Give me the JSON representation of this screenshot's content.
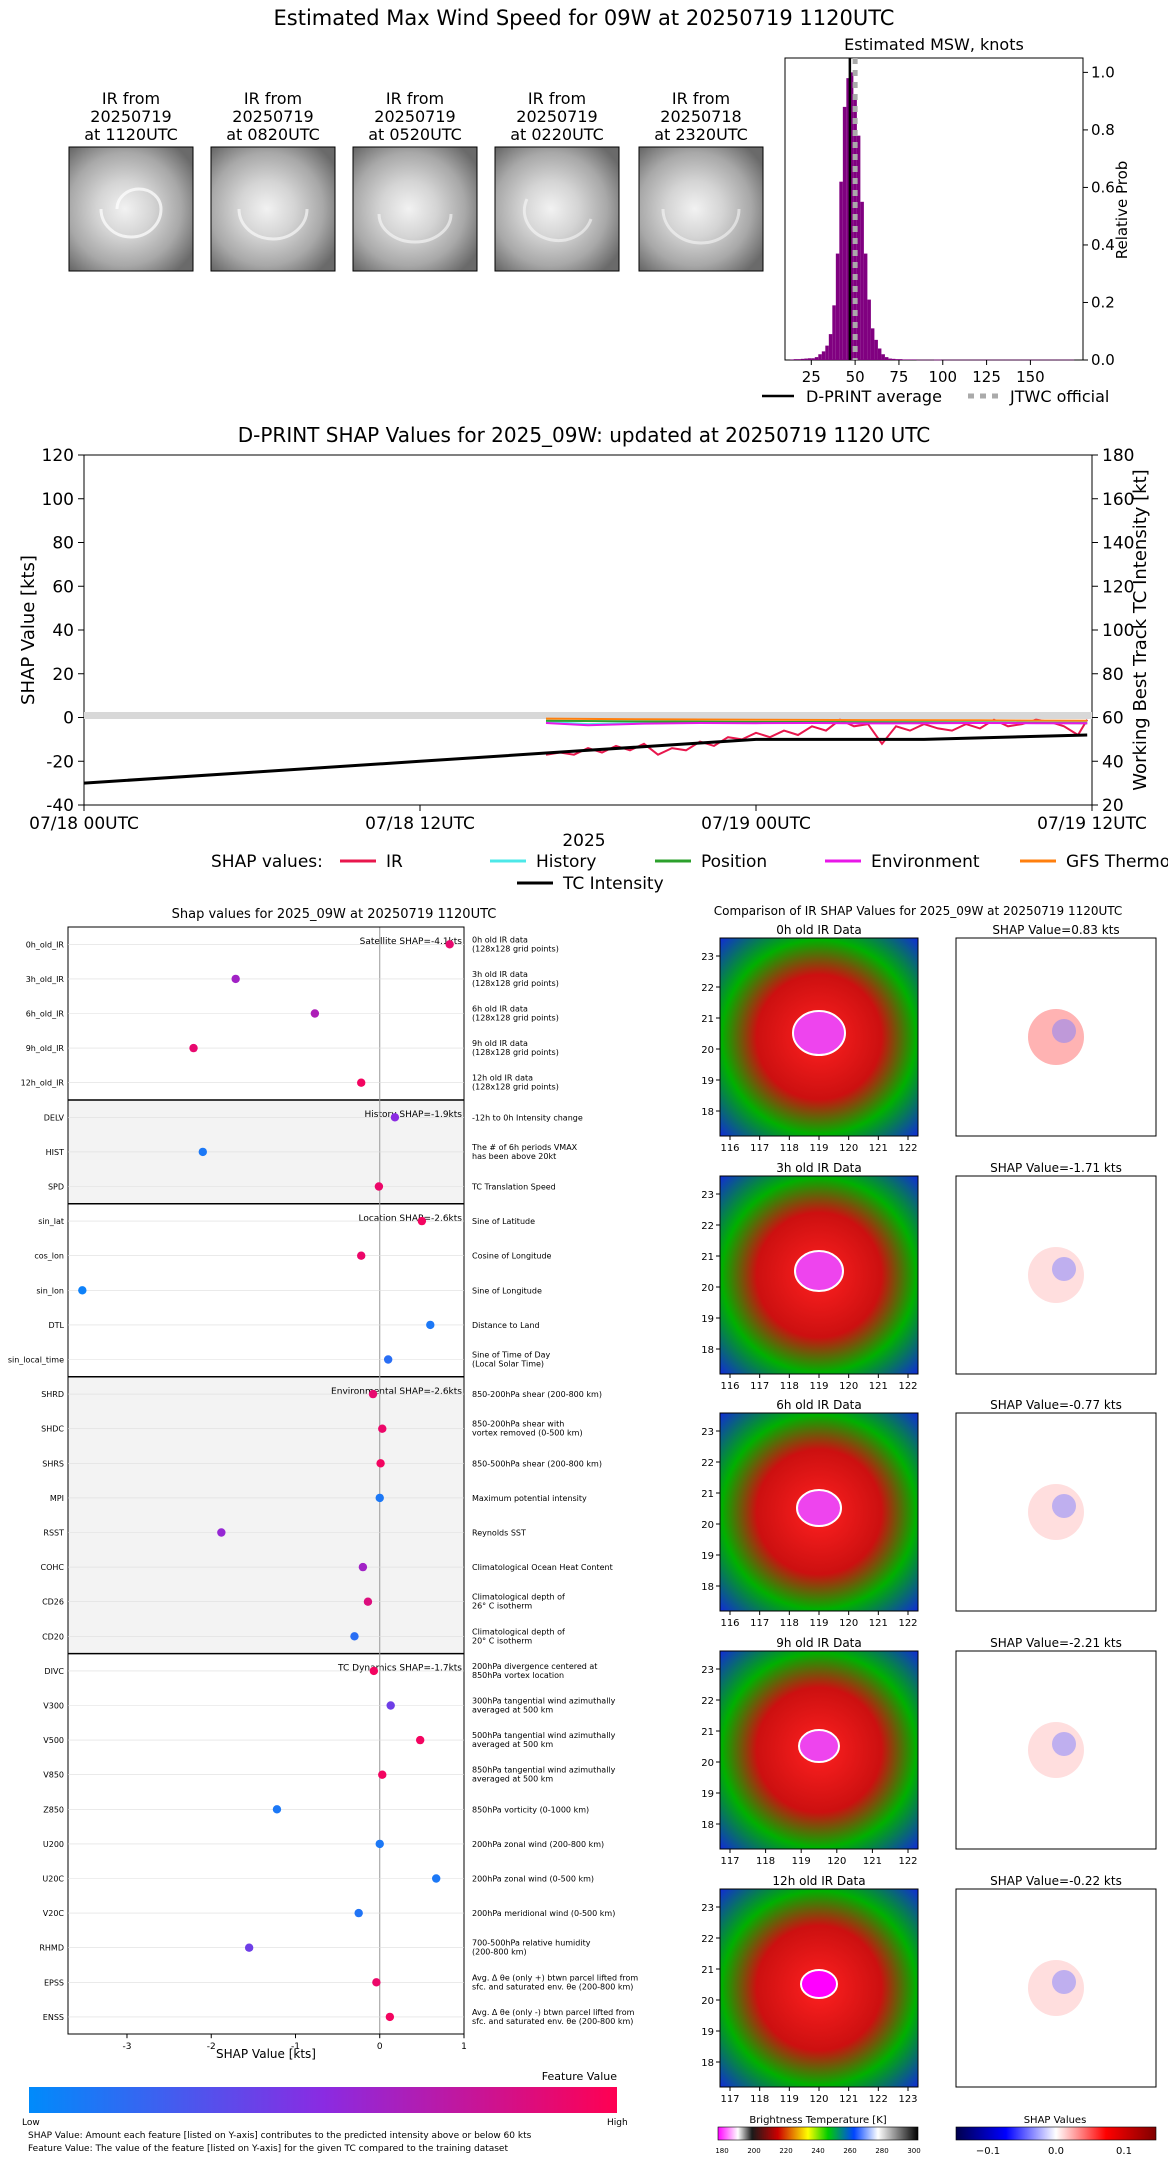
{
  "top": {
    "title": "Estimated Max Wind Speed for 09W at 20250719 1120UTC",
    "ir_panels": [
      {
        "label": "IR from\n20250719\nat 1120UTC"
      },
      {
        "label": "IR from\n20250719\nat 0820UTC"
      },
      {
        "label": "IR from\n20250719\nat 0520UTC"
      },
      {
        "label": "IR from\n20250719\nat 0220UTC"
      },
      {
        "label": "IR from\n20250718\nat 2320UTC"
      }
    ]
  },
  "msw": {
    "title": "Estimated MSW, knots",
    "ylabel": "Relative Prob",
    "legend": {
      "avg": "D-PRINT average",
      "official": "JTWC official"
    },
    "colors": {
      "bar": "#800080",
      "avg": "#000000",
      "official": "#aaaaaa"
    }
  },
  "shap_ts": {
    "title": "D-PRINT SHAP Values for 2025_09W: updated at 20250719 1120 UTC",
    "ylabel_left": "SHAP Value [kts]",
    "ylabel_right": "Working Best Track TC Intensity [kt]",
    "xlabel": "2025",
    "legend_title": "SHAP values:",
    "legend": [
      {
        "name": "IR",
        "color": "#e8174d"
      },
      {
        "name": "History",
        "color": "#4de8e8"
      },
      {
        "name": "Position",
        "color": "#2ca02c"
      },
      {
        "name": "Environment",
        "color": "#e817e8"
      },
      {
        "name": "GFS Thermo",
        "color": "#ff7f0e"
      },
      {
        "name": "TC Intensity",
        "color": "#000000"
      }
    ]
  },
  "shapdot": {
    "title": "Shap values for 2025_09W at 20250719 1120UTC",
    "xlabel": "SHAP Value [kts]",
    "colorbar": {
      "title": "Feature Value",
      "low": "Low",
      "high": "High"
    },
    "groups": [
      {
        "label": "Satellite SHAP=-4.1kts"
      },
      {
        "label": "History SHAP=-1.9kts"
      },
      {
        "label": "Location SHAP=-2.6kts"
      },
      {
        "label": "Environmental SHAP=-2.6kts"
      },
      {
        "label": "TC Dynamics SHAP=-1.7kts"
      }
    ],
    "footnote1": "SHAP Value: Amount each feature [listed on Y-axis] contributes to the predicted intensity above or below 60 kts",
    "footnote2": "Feature Value: The value of the feature [listed on Y-axis] for the given TC compared to the training dataset"
  },
  "irshap": {
    "title": "Comparison of IR SHAP Values for 2025_09W at 20250719 1120UTC",
    "rows": [
      {
        "ir_title": "0h old IR Data",
        "shap_title": "SHAP Value=0.83 kts"
      },
      {
        "ir_title": "3h old IR Data",
        "shap_title": "SHAP Value=-1.71 kts"
      },
      {
        "ir_title": "6h old IR Data",
        "shap_title": "SHAP Value=-0.77 kts"
      },
      {
        "ir_title": "9h old IR Data",
        "shap_title": "SHAP Value=-2.21 kts"
      },
      {
        "ir_title": "12h old IR Data",
        "shap_title": "SHAP Value=-0.22 kts"
      }
    ],
    "bt_label": "Brightness Temperature [K]",
    "bt_ticks": [
      "180",
      "200",
      "220",
      "240",
      "260",
      "280",
      "300"
    ],
    "sv_label": "SHAP Values",
    "sv_ticks": [
      "−0.1",
      "0.0",
      "0.1"
    ]
  },
  "chart_data": [
    {
      "type": "bar",
      "title": "Estimated MSW, knots",
      "ylabel": "Relative Prob",
      "xlim": [
        10,
        180
      ],
      "ylim": [
        0,
        1.05
      ],
      "xticks": [
        25,
        50,
        75,
        100,
        125,
        150
      ],
      "yticks": [
        0.0,
        0.2,
        0.4,
        0.6,
        0.8,
        1.0
      ],
      "x": [
        14,
        16,
        18,
        20,
        22,
        24,
        26,
        28,
        30,
        32,
        34,
        36,
        38,
        40,
        42,
        44,
        46,
        48,
        50,
        52,
        54,
        56,
        58,
        60,
        62,
        64,
        66,
        68,
        70,
        72,
        74,
        76,
        78,
        80,
        82,
        84,
        86,
        88,
        90,
        92,
        94,
        96,
        98,
        100,
        110,
        120,
        130,
        140,
        150,
        160,
        170
      ],
      "values": [
        0.002,
        0.003,
        0.003,
        0.004,
        0.005,
        0.006,
        0.006,
        0.01,
        0.02,
        0.03,
        0.05,
        0.09,
        0.19,
        0.37,
        0.62,
        0.88,
        0.98,
        1.0,
        0.92,
        0.78,
        0.55,
        0.37,
        0.21,
        0.11,
        0.07,
        0.04,
        0.02,
        0.01,
        0.005,
        0.004,
        0.003,
        0.003,
        0.002,
        0.002,
        0.002,
        0.002,
        0.001,
        0.001,
        0.001,
        0.001,
        0.001,
        0.001,
        0.001,
        0.001,
        0.001,
        0.001,
        0.001,
        0.001,
        0.001,
        0.001,
        0.001
      ],
      "dprint_average": 47,
      "jtwc_official": 50
    },
    {
      "type": "line",
      "title": "D-PRINT SHAP Values for 2025_09W: updated at 20250719 1120 UTC",
      "xlabel": "2025",
      "ylabel": "SHAP Value [kts]",
      "ylabel_right": "Working Best Track TC Intensity [kt]",
      "ylim": [
        -40,
        120
      ],
      "ylim_right": [
        20,
        180
      ],
      "yticks": [
        -40,
        -20,
        0,
        20,
        40,
        60,
        80,
        100,
        120
      ],
      "yticks_right": [
        20,
        40,
        60,
        80,
        100,
        120,
        140,
        160,
        180
      ],
      "xlim_hours": [
        0,
        36
      ],
      "xticks": [
        {
          "h": 0,
          "label": "07/18 00UTC"
        },
        {
          "h": 12,
          "label": "07/18 12UTC"
        },
        {
          "h": 24,
          "label": "07/19 00UTC"
        },
        {
          "h": 36,
          "label": "07/19 12UTC"
        }
      ],
      "series": [
        {
          "name": "IR",
          "hours": [
            16.5,
            17,
            17.5,
            18,
            18.5,
            19,
            19.5,
            20,
            20.5,
            21,
            21.5,
            22,
            22.5,
            23,
            23.5,
            24,
            24.5,
            25,
            25.5,
            26,
            26.5,
            27,
            27.5,
            28,
            28.5,
            29,
            29.5,
            30,
            30.5,
            31,
            31.5,
            32,
            32.5,
            33,
            33.5,
            34,
            34.5,
            35,
            35.5,
            35.83
          ],
          "values": [
            -17,
            -16,
            -17,
            -14,
            -16,
            -13,
            -15,
            -12,
            -17,
            -14,
            -15,
            -11,
            -13,
            -9,
            -10,
            -7,
            -9,
            -6,
            -8,
            -4,
            -6,
            -1,
            -4,
            -3,
            -12,
            -4,
            -6,
            -3,
            -5,
            -6,
            -3,
            -5,
            -1,
            -4,
            -3,
            -1,
            -2,
            -4,
            -8,
            -1
          ]
        },
        {
          "name": "History",
          "hours": [
            16.5,
            18,
            20,
            22,
            24,
            26,
            28,
            30,
            32,
            34,
            35.83
          ],
          "values": [
            -2,
            -3,
            -2.5,
            -2.5,
            -2.3,
            -2.2,
            -2.1,
            -2,
            -2,
            -1.9,
            -1.9
          ]
        },
        {
          "name": "Position",
          "hours": [
            16.5,
            20,
            24,
            28,
            32,
            35.83
          ],
          "values": [
            -1.5,
            -1.8,
            -2,
            -2.2,
            -2.4,
            -2.6
          ]
        },
        {
          "name": "Environment",
          "hours": [
            16.5,
            18,
            20,
            22,
            24,
            26,
            28,
            30,
            32,
            34,
            35.83
          ],
          "values": [
            -2.5,
            -3.5,
            -2.8,
            -2.5,
            -2.6,
            -2.5,
            -2.7,
            -2.6,
            -2.5,
            -2.6,
            -2.6
          ]
        },
        {
          "name": "GFS Thermo",
          "hours": [
            16.5,
            20,
            24,
            28,
            32,
            35.83
          ],
          "values": [
            -0.5,
            -0.8,
            -1,
            -1.2,
            -1.3,
            -1.5
          ]
        },
        {
          "name": "TC Intensity",
          "axis": "right",
          "hours": [
            0,
            6,
            12,
            18,
            24,
            30,
            35.83
          ],
          "values": [
            30,
            35,
            40,
            45,
            50,
            50,
            52
          ]
        }
      ]
    },
    {
      "type": "scatter",
      "title": "Shap values for 2025_09W at 20250719 1120UTC",
      "xlabel": "SHAP Value [kts]",
      "xlim": [
        -3.7,
        1.0
      ],
      "xticks": [
        -3,
        -2,
        -1,
        0,
        1
      ],
      "features": [
        {
          "key": "0h_old_IR",
          "desc": "0h old IR data\n(128x128 grid points)",
          "shap": 0.83,
          "fv": 0.9
        },
        {
          "key": "3h_old_IR",
          "desc": "3h old IR data\n(128x128 grid points)",
          "shap": -1.71,
          "fv": 0.6
        },
        {
          "key": "6h_old_IR",
          "desc": "6h old IR data\n(128x128 grid points)",
          "shap": -0.77,
          "fv": 0.65
        },
        {
          "key": "9h_old_IR",
          "desc": "9h old IR data\n(128x128 grid points)",
          "shap": -2.21,
          "fv": 0.9
        },
        {
          "key": "12h_old_IR",
          "desc": "12h old IR data\n(128x128 grid points)",
          "shap": -0.22,
          "fv": 0.95
        },
        {
          "key": "DELV",
          "desc": "-12h to 0h Intensity change",
          "shap": 0.18,
          "fv": 0.5
        },
        {
          "key": "HIST",
          "desc": "The # of 6h periods VMAX\nhas been above 20kt",
          "shap": -2.1,
          "fv": 0.1
        },
        {
          "key": "SPD",
          "desc": "TC Translation Speed",
          "shap": -0.01,
          "fv": 0.92
        },
        {
          "key": "sin_lat",
          "desc": "Sine of Latitude",
          "shap": 0.5,
          "fv": 0.95
        },
        {
          "key": "cos_lon",
          "desc": "Cosine of Longitude",
          "shap": -0.22,
          "fv": 0.92
        },
        {
          "key": "sin_lon",
          "desc": "Sine of Longitude",
          "shap": -3.53,
          "fv": 0.05
        },
        {
          "key": "DTL",
          "desc": "Distance to Land",
          "shap": 0.6,
          "fv": 0.1
        },
        {
          "key": "sin_local_time",
          "desc": "Sine of Time of Day\n(Local Solar Time)",
          "shap": 0.1,
          "fv": 0.15
        },
        {
          "key": "SHRD",
          "desc": "850-200hPa shear (200-800 km)",
          "shap": -0.08,
          "fv": 0.9
        },
        {
          "key": "SHDC",
          "desc": "850-200hPa shear with\nvortex removed (0-500 km)",
          "shap": 0.03,
          "fv": 0.92
        },
        {
          "key": "SHRS",
          "desc": "850-500hPa shear (200-800 km)",
          "shap": 0.01,
          "fv": 0.95
        },
        {
          "key": "MPI",
          "desc": "Maximum potential intensity",
          "shap": 0.0,
          "fv": 0.1
        },
        {
          "key": "RSST",
          "desc": "Reynolds SST",
          "shap": -1.88,
          "fv": 0.55
        },
        {
          "key": "COHC",
          "desc": "Climatological Ocean Heat Content",
          "shap": -0.2,
          "fv": 0.6
        },
        {
          "key": "CD26",
          "desc": "Climatological depth of\n26° C isotherm",
          "shap": -0.14,
          "fv": 0.85
        },
        {
          "key": "CD20",
          "desc": "Climatological depth of\n20° C isotherm",
          "shap": -0.3,
          "fv": 0.15
        },
        {
          "key": "DIVC",
          "desc": "200hPa divergence centered at\n850hPa vortex location",
          "shap": -0.07,
          "fv": 0.95
        },
        {
          "key": "V300",
          "desc": "300hPa tangential wind azimuthally\naveraged at 500 km",
          "shap": 0.13,
          "fv": 0.4
        },
        {
          "key": "V500",
          "desc": "500hPa tangential wind azimuthally\naveraged at 500 km",
          "shap": 0.48,
          "fv": 0.95
        },
        {
          "key": "V850",
          "desc": "850hPa tangential wind azimuthally\naveraged at 500 km",
          "shap": 0.03,
          "fv": 0.95
        },
        {
          "key": "Z850",
          "desc": "850hPa vorticity (0-1000 km)",
          "shap": -1.22,
          "fv": 0.1
        },
        {
          "key": "U200",
          "desc": "200hPa zonal wind (200-800 km)",
          "shap": 0.0,
          "fv": 0.1
        },
        {
          "key": "U20C",
          "desc": "200hPa zonal wind (0-500 km)",
          "shap": 0.67,
          "fv": 0.1
        },
        {
          "key": "V20C",
          "desc": "200hPa meridional wind (0-500 km)",
          "shap": -0.25,
          "fv": 0.12
        },
        {
          "key": "RHMD",
          "desc": "700-500hPa relative humidity\n(200-800 km)",
          "shap": -1.55,
          "fv": 0.4
        },
        {
          "key": "EPSS",
          "desc": "Avg. Δ θe (only +) btwn parcel lifted from\nsfc. and saturated env. θe (200-800 km)",
          "shap": -0.04,
          "fv": 0.92
        },
        {
          "key": "ENSS",
          "desc": "Avg. Δ θe (only -) btwn parcel lifted from\nsfc. and saturated env. θe (200-800 km)",
          "shap": 0.12,
          "fv": 0.95
        }
      ]
    },
    {
      "type": "heatmap",
      "title": "Comparison of IR SHAP Values for 2025_09W at 20250719 1120UTC",
      "panels": [
        {
          "title": "0h old IR Data",
          "xticks": [
            116,
            117,
            118,
            119,
            120,
            121,
            122
          ],
          "yticks": [
            23,
            22,
            21,
            20,
            19,
            18
          ]
        },
        {
          "title": "3h old IR Data",
          "xticks": [
            116,
            117,
            118,
            119,
            120,
            121,
            122
          ],
          "yticks": [
            23,
            22,
            21,
            20,
            19,
            18
          ]
        },
        {
          "title": "6h old IR Data",
          "xticks": [
            116,
            117,
            118,
            119,
            120,
            121,
            122
          ],
          "yticks": [
            23,
            22,
            21,
            20,
            19,
            18
          ]
        },
        {
          "title": "9h old IR Data",
          "xticks": [
            117,
            118,
            119,
            120,
            121,
            122
          ],
          "yticks": [
            23,
            22,
            21,
            20,
            19,
            18
          ]
        },
        {
          "title": "12h old IR Data",
          "xticks": [
            117,
            118,
            119,
            120,
            121,
            122,
            123
          ],
          "yticks": [
            23,
            22,
            21,
            20,
            19,
            18
          ]
        }
      ]
    }
  ]
}
